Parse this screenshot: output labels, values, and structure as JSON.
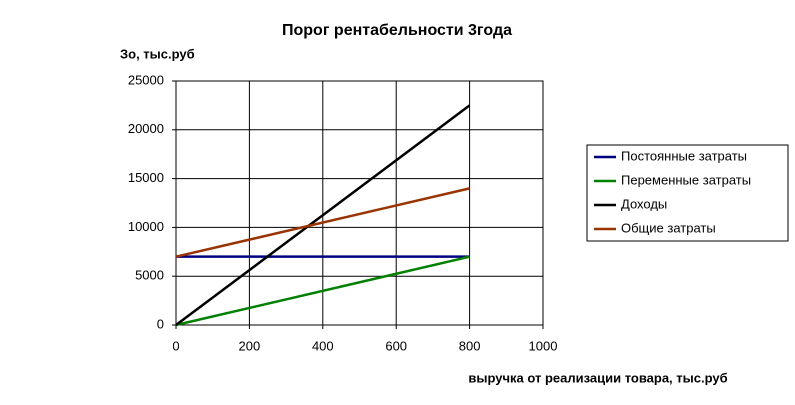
{
  "chart_data": {
    "type": "line",
    "title": "Порог рентабельности 3года",
    "y_label": "Зо, тыс.руб",
    "x_label": "выручка от реализации товара, тыс.руб",
    "x": [
      0,
      800
    ],
    "series": [
      {
        "name": "Постоянные затраты",
        "color": "#000080",
        "values": [
          7000,
          7000
        ]
      },
      {
        "name": "Переменные затраты",
        "color": "#008000",
        "values": [
          0,
          7000
        ]
      },
      {
        "name": "Доходы",
        "color": "#000000",
        "values": [
          0,
          22500
        ]
      },
      {
        "name": "Общие затраты",
        "color": "#993300",
        "values": [
          7000,
          14000
        ]
      }
    ],
    "xlim": [
      0,
      1000
    ],
    "xticks": [
      0,
      200,
      400,
      600,
      800,
      1000
    ],
    "ylim": [
      0,
      25000
    ],
    "yticks": [
      0,
      5000,
      10000,
      15000,
      20000,
      25000
    ],
    "grid": true,
    "legend": "right"
  }
}
